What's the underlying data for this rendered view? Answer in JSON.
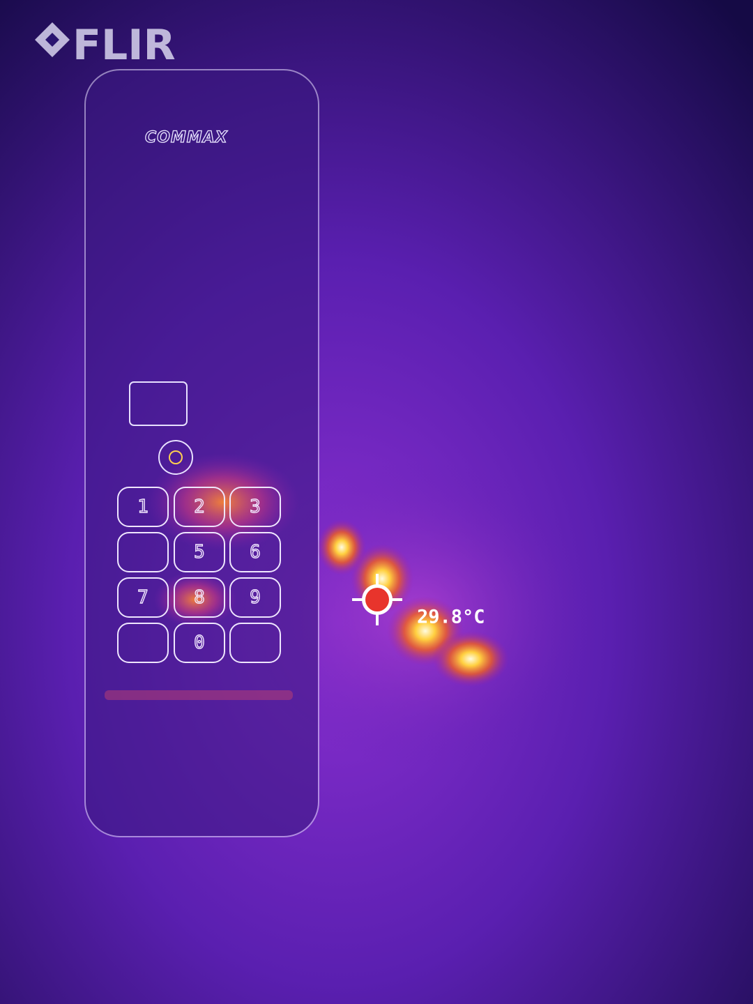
{
  "logo": "FLIR",
  "device": {
    "brand": "COMMAX",
    "keys": [
      "1",
      "2",
      "3",
      "5",
      "6",
      "7",
      "8",
      "9",
      "0"
    ]
  },
  "measurement": {
    "reading": "29.8°C"
  }
}
